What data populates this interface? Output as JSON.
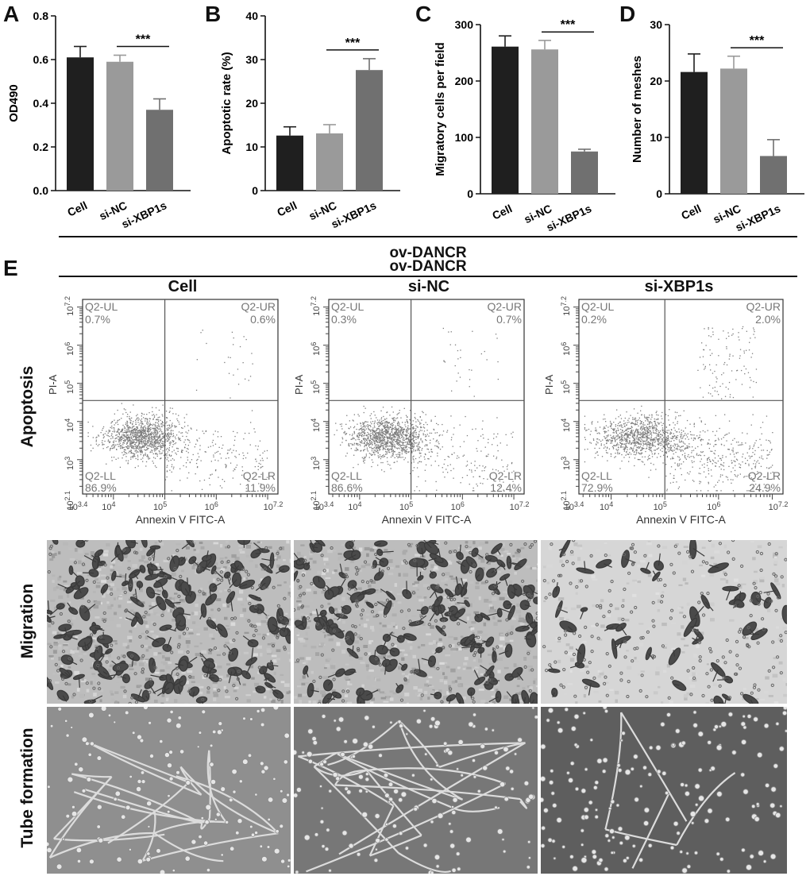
{
  "panels": {
    "A": {
      "letter": "A"
    },
    "B": {
      "letter": "B"
    },
    "C": {
      "letter": "C"
    },
    "D": {
      "letter": "D"
    },
    "E": {
      "letter": "E"
    }
  },
  "chart_data": [
    {
      "type": "bar",
      "panel": "A",
      "categories": [
        "Cell",
        "si-NC",
        "si-XBP1s"
      ],
      "values": [
        0.61,
        0.59,
        0.37
      ],
      "errors": [
        0.05,
        0.03,
        0.05
      ],
      "ylabel": "OD490",
      "ylim": [
        0.0,
        0.8
      ],
      "yticks": [
        "0.0",
        "0.2",
        "0.4",
        "0.6",
        "0.8"
      ],
      "significance": "***",
      "colors": [
        "#1f1f1f",
        "#9a9a9a",
        "#707070"
      ]
    },
    {
      "type": "bar",
      "panel": "B",
      "categories": [
        "Cell",
        "si-NC",
        "si-XBP1s"
      ],
      "values": [
        12.6,
        13.1,
        27.6
      ],
      "errors": [
        2.0,
        2.0,
        2.6
      ],
      "ylabel": "Apoptotic rate (%)",
      "ylim": [
        0,
        40
      ],
      "yticks": [
        "0",
        "10",
        "20",
        "30",
        "40"
      ],
      "significance": "***",
      "colors": [
        "#1f1f1f",
        "#9a9a9a",
        "#707070"
      ]
    },
    {
      "type": "bar",
      "panel": "C",
      "categories": [
        "Cell",
        "si-NC",
        "si-XBP1s"
      ],
      "values": [
        261,
        256,
        75
      ],
      "errors": [
        19,
        16,
        4
      ],
      "ylabel": "Migratory cells per field",
      "ylim": [
        0,
        300
      ],
      "yticks": [
        "0",
        "100",
        "200",
        "300"
      ],
      "significance": "***",
      "colors": [
        "#1f1f1f",
        "#9a9a9a",
        "#707070"
      ]
    },
    {
      "type": "bar",
      "panel": "D",
      "categories": [
        "Cell",
        "si-NC",
        "si-XBP1s"
      ],
      "values": [
        21.6,
        22.2,
        6.7
      ],
      "errors": [
        3.2,
        2.2,
        2.9
      ],
      "ylabel": "Number of meshes",
      "ylim": [
        0,
        30
      ],
      "yticks": [
        "0",
        "10",
        "20",
        "30"
      ],
      "significance": "***",
      "colors": [
        "#1f1f1f",
        "#9a9a9a",
        "#707070"
      ]
    }
  ],
  "groups": {
    "top_label": "ov-DANCR",
    "e_label": "ov-DANCR"
  },
  "flow": {
    "columns": [
      "Cell",
      "si-NC",
      "si-XBP1s"
    ],
    "row_labels": {
      "apoptosis": "Apoptosis",
      "migration": "Migration",
      "tube": "Tube formation"
    },
    "xlabel": "Annexin V FITC-A",
    "ylabel": "PI-A",
    "quadrant_names": {
      "ul": "Q2-UL",
      "ur": "Q2-UR",
      "ll": "Q2-LL",
      "lr": "Q2-LR"
    },
    "plots": [
      {
        "ul": "0.7%",
        "ur": "0.6%",
        "ll": "86.9%",
        "lr": "11.9%"
      },
      {
        "ul": "0.3%",
        "ur": "0.7%",
        "ll": "86.6%",
        "lr": "12.4%"
      },
      {
        "ul": "0.2%",
        "ur": "2.0%",
        "ll": "72.9%",
        "lr": "24.9%"
      }
    ],
    "x_ticks": [
      "10^3.4",
      "10^4",
      "10^5",
      "10^6",
      "10^7.2"
    ],
    "y_ticks": [
      "10^2.1",
      "10^3",
      "10^4",
      "10^5",
      "10^6",
      "10^7.2"
    ]
  }
}
